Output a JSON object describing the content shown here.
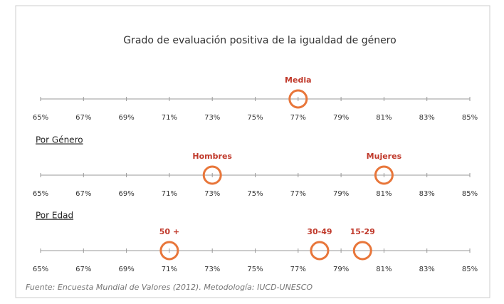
{
  "chart_data": [
    {
      "type": "scatter",
      "title": "Grado de evaluación positiva de la igualdad de género",
      "categories": [
        "Media"
      ],
      "values": [
        77
      ],
      "color": "#e8763a",
      "xlim": [
        65,
        85
      ],
      "xticks": [
        {
          "value": 65,
          "label": "65%"
        },
        {
          "value": 67,
          "label": "67%"
        },
        {
          "value": 69,
          "label": "69%"
        },
        {
          "value": 71,
          "label": "71%"
        },
        {
          "value": 73,
          "label": "73%"
        },
        {
          "value": 75,
          "label": "75%"
        },
        {
          "value": 77,
          "label": "77%"
        },
        {
          "value": 79,
          "label": "79%"
        },
        {
          "value": 81,
          "label": "81%"
        },
        {
          "value": 83,
          "label": "83%"
        },
        {
          "value": 85,
          "label": "85%"
        }
      ]
    },
    {
      "type": "scatter",
      "subtitle": "Por Género",
      "categories": [
        "Hombres",
        "Mujeres"
      ],
      "values": [
        73,
        81
      ],
      "color": "#e8763a",
      "xlim": [
        65,
        85
      ],
      "xticks": [
        {
          "value": 65,
          "label": "65%"
        },
        {
          "value": 67,
          "label": "67%"
        },
        {
          "value": 69,
          "label": "69%"
        },
        {
          "value": 71,
          "label": "71%"
        },
        {
          "value": 73,
          "label": "73%"
        },
        {
          "value": 75,
          "label": "75%"
        },
        {
          "value": 77,
          "label": "77%"
        },
        {
          "value": 79,
          "label": "79%"
        },
        {
          "value": 81,
          "label": "81%"
        },
        {
          "value": 83,
          "label": "83%"
        },
        {
          "value": 85,
          "label": "85%"
        }
      ]
    },
    {
      "type": "scatter",
      "subtitle": "Por Edad",
      "categories": [
        "50 +",
        "30-49",
        "15-29"
      ],
      "values": [
        71,
        78,
        80
      ],
      "color": "#e8763a",
      "xlim": [
        65,
        85
      ],
      "xticks": [
        {
          "value": 65,
          "label": "65%"
        },
        {
          "value": 67,
          "label": "67%"
        },
        {
          "value": 69,
          "label": "69%"
        },
        {
          "value": 71,
          "label": "71%"
        },
        {
          "value": 73,
          "label": "73%"
        },
        {
          "value": 75,
          "label": "75%"
        },
        {
          "value": 77,
          "label": "77%"
        },
        {
          "value": 79,
          "label": "79%"
        },
        {
          "value": 81,
          "label": "81%"
        },
        {
          "value": 83,
          "label": "83%"
        },
        {
          "value": 85,
          "label": "85%"
        }
      ]
    }
  ],
  "source": "Fuente: Encuesta Mundial de Valores (2012). Metodología: IUCD-UNESCO"
}
